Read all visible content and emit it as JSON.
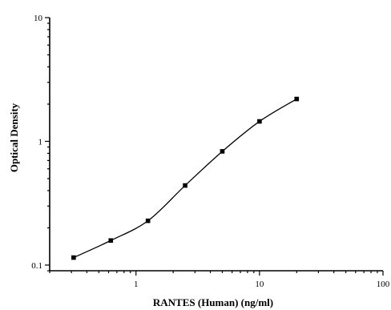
{
  "chart_data": {
    "type": "scatter",
    "xlabel": "RANTES (Human) (ng/ml)",
    "ylabel": "Optical Density",
    "xscale": "log",
    "yscale": "log",
    "xlim": [
      0.2,
      100
    ],
    "ylim": [
      0.09,
      10
    ],
    "x_ticks": [
      1,
      10,
      100
    ],
    "x_tick_labels": [
      "1",
      "10",
      "100"
    ],
    "y_ticks": [
      0.1,
      1,
      10
    ],
    "y_tick_labels": [
      "0.1",
      "1",
      "10"
    ],
    "grid": false,
    "legend": "none",
    "series": [
      {
        "x": [
          0.3125,
          0.625,
          1.25,
          2.5,
          5,
          10,
          20
        ],
        "y": [
          0.115,
          0.158,
          0.228,
          0.44,
          0.83,
          1.45,
          2.2
        ],
        "marker": "square",
        "fit": "4PL curve"
      }
    ],
    "colors": {
      "points": "#000000",
      "curve": "#000000",
      "axes": "#000000"
    }
  }
}
